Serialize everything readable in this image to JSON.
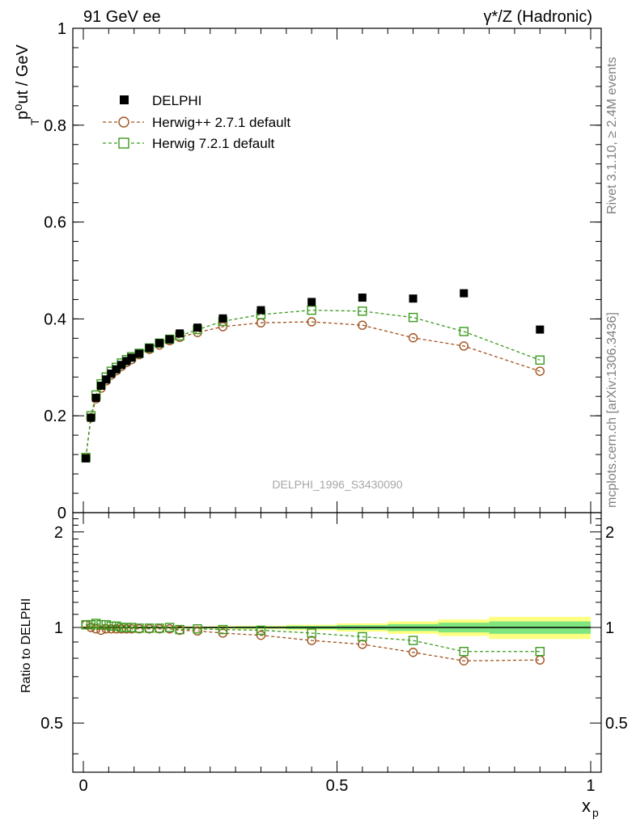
{
  "header": {
    "left": "91 GeV ee",
    "right": "γ*/Z (Hadronic)"
  },
  "side_text": {
    "rivet": "Rivet 3.1.10, ≥ 2.4M events",
    "source": "mcplots.cern.ch [arXiv:1306.3436]"
  },
  "watermark": "DELPHI_1996_S3430090",
  "colors": {
    "data": "#000000",
    "herwigpp": "#a0521e",
    "herwig7": "#3a9a1e",
    "band_inner": "#7fe57f",
    "band_outer": "#ffff80"
  },
  "chart_data": [
    {
      "type": "scatter",
      "ylabel": "p_T^out / GeV",
      "xlim": [
        0,
        1
      ],
      "ylim": [
        0,
        1
      ],
      "yticks": [
        0,
        0.2,
        0.4,
        0.6,
        0.8,
        1
      ],
      "ytick_labels": [
        "0",
        "0.2",
        "0.4",
        "0.6",
        "0.8",
        "1"
      ],
      "legend_position": "top-left",
      "series": [
        {
          "name": "DELPHI",
          "marker": "filled-square",
          "x": [
            0.005,
            0.015,
            0.025,
            0.035,
            0.045,
            0.055,
            0.065,
            0.075,
            0.085,
            0.095,
            0.11,
            0.13,
            0.15,
            0.17,
            0.19,
            0.225,
            0.275,
            0.35,
            0.45,
            0.55,
            0.65,
            0.75,
            0.9
          ],
          "y": [
            0.112,
            0.196,
            0.237,
            0.262,
            0.275,
            0.287,
            0.296,
            0.305,
            0.313,
            0.32,
            0.328,
            0.34,
            0.35,
            0.358,
            0.37,
            0.382,
            0.401,
            0.418,
            0.435,
            0.444,
            0.442,
            0.453,
            0.378
          ]
        },
        {
          "name": "Herwig++ 2.7.1 default",
          "marker": "open-circle",
          "x": [
            0.005,
            0.015,
            0.025,
            0.035,
            0.045,
            0.055,
            0.065,
            0.075,
            0.085,
            0.095,
            0.11,
            0.13,
            0.15,
            0.17,
            0.19,
            0.225,
            0.275,
            0.35,
            0.45,
            0.55,
            0.65,
            0.75,
            0.9
          ],
          "y": [
            0.114,
            0.196,
            0.235,
            0.257,
            0.272,
            0.284,
            0.293,
            0.302,
            0.31,
            0.316,
            0.326,
            0.337,
            0.346,
            0.355,
            0.362,
            0.372,
            0.384,
            0.392,
            0.394,
            0.387,
            0.361,
            0.344,
            0.292
          ]
        },
        {
          "name": "Herwig 7.2.1 default",
          "marker": "open-square",
          "x": [
            0.005,
            0.015,
            0.025,
            0.035,
            0.045,
            0.055,
            0.065,
            0.075,
            0.085,
            0.095,
            0.11,
            0.13,
            0.15,
            0.17,
            0.19,
            0.225,
            0.275,
            0.35,
            0.45,
            0.55,
            0.65,
            0.75,
            0.9
          ],
          "y": [
            0.114,
            0.2,
            0.243,
            0.266,
            0.28,
            0.292,
            0.3,
            0.309,
            0.316,
            0.322,
            0.329,
            0.34,
            0.35,
            0.358,
            0.365,
            0.378,
            0.395,
            0.409,
            0.418,
            0.416,
            0.403,
            0.374,
            0.315
          ]
        }
      ]
    },
    {
      "type": "scatter",
      "xlabel": "x_p",
      "ylabel": "Ratio to DELPHI",
      "xlim": [
        0,
        1
      ],
      "ylim": [
        0.35,
        2.3
      ],
      "log_y": true,
      "xticks": [
        0,
        0.5,
        1
      ],
      "xtick_labels": [
        "0",
        "0.5",
        "1"
      ],
      "yticks": [
        0.5,
        1,
        2
      ],
      "ytick_labels": [
        "0.5",
        "1",
        "2"
      ],
      "reference_line": 1,
      "uncertainty_band": {
        "x_edges": [
          0,
          0.01,
          0.02,
          0.03,
          0.04,
          0.05,
          0.06,
          0.07,
          0.08,
          0.09,
          0.1,
          0.12,
          0.14,
          0.16,
          0.18,
          0.2,
          0.25,
          0.3,
          0.4,
          0.5,
          0.6,
          0.7,
          0.8,
          1.0
        ],
        "inner_half_width": [
          0.005,
          0.005,
          0.005,
          0.005,
          0.005,
          0.005,
          0.005,
          0.005,
          0.005,
          0.005,
          0.005,
          0.005,
          0.005,
          0.005,
          0.005,
          0.005,
          0.006,
          0.008,
          0.012,
          0.018,
          0.025,
          0.035,
          0.045
        ],
        "outer_half_width": [
          0.008,
          0.008,
          0.008,
          0.008,
          0.008,
          0.008,
          0.008,
          0.008,
          0.008,
          0.008,
          0.008,
          0.008,
          0.008,
          0.008,
          0.008,
          0.008,
          0.01,
          0.013,
          0.02,
          0.03,
          0.045,
          0.06,
          0.08
        ]
      },
      "series": [
        {
          "name": "Herwig++ 2.7.1 default",
          "marker": "open-circle",
          "x": [
            0.005,
            0.015,
            0.025,
            0.035,
            0.045,
            0.055,
            0.065,
            0.075,
            0.085,
            0.095,
            0.11,
            0.13,
            0.15,
            0.17,
            0.19,
            0.225,
            0.275,
            0.35,
            0.45,
            0.55,
            0.65,
            0.75,
            0.9
          ],
          "y": [
            1.02,
            1.0,
            0.99,
            0.98,
            0.99,
            0.99,
            0.99,
            0.99,
            0.99,
            0.99,
            0.99,
            0.99,
            0.99,
            0.99,
            0.98,
            0.975,
            0.96,
            0.945,
            0.91,
            0.885,
            0.835,
            0.785,
            0.79
          ]
        },
        {
          "name": "Herwig 7.2.1 default",
          "marker": "open-square",
          "x": [
            0.005,
            0.015,
            0.025,
            0.035,
            0.045,
            0.055,
            0.065,
            0.075,
            0.085,
            0.095,
            0.11,
            0.13,
            0.15,
            0.17,
            0.19,
            0.225,
            0.275,
            0.35,
            0.45,
            0.55,
            0.65,
            0.75,
            0.9
          ],
          "y": [
            1.02,
            1.02,
            1.03,
            1.02,
            1.02,
            1.01,
            1.01,
            1.0,
            1.0,
            1.0,
            0.995,
            0.995,
            0.995,
            1.0,
            0.985,
            0.99,
            0.985,
            0.98,
            0.96,
            0.935,
            0.91,
            0.84,
            0.84
          ]
        }
      ]
    }
  ]
}
